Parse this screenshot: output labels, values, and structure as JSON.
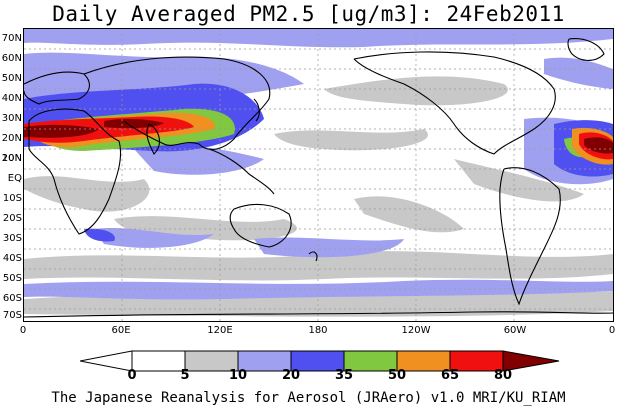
{
  "title": "Daily Averaged PM2.5 [ug/m3]: 24Feb2011",
  "credit": "The Japanese Reanalysis for Aerosol (JRAero) v1.0 MRI/KU_RIAM",
  "lat_labels": [
    "70N",
    "60N",
    "50N",
    "40N",
    "30N",
    "20N",
    "10N",
    "EQ",
    "10S",
    "20S",
    "30S",
    "40S",
    "50S",
    "60S",
    "70S"
  ],
  "lon_labels": [
    "0",
    "60E",
    "120E",
    "180",
    "120W",
    "60W",
    "0"
  ],
  "colorbar": {
    "ticks": [
      "0",
      "5",
      "10",
      "20",
      "35",
      "50",
      "65",
      "80"
    ],
    "colors": [
      "#ffffff",
      "#c8c8c8",
      "#a0a0f0",
      "#5050f0",
      "#80c840",
      "#f09020",
      "#f01010",
      "#800000"
    ]
  }
}
